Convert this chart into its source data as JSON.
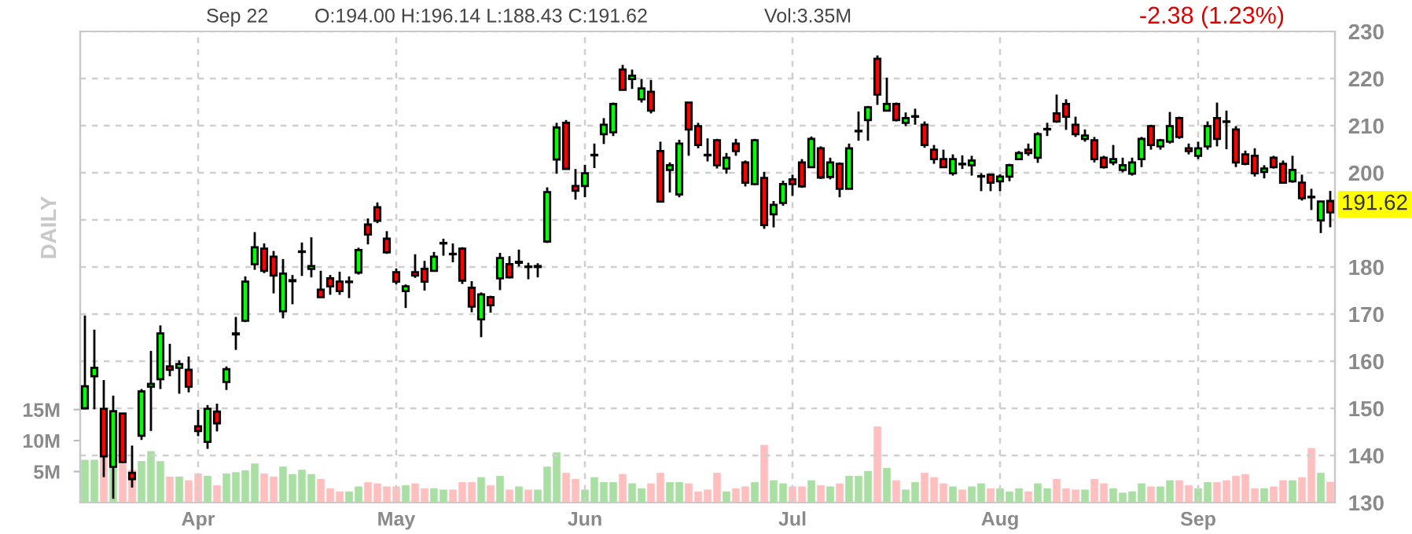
{
  "chart_data": {
    "type": "candlestick",
    "annotations": [
      "Sep 22",
      "O:194.00 H:196.14 L:188.43 C:191.62",
      "Vol:3.35M",
      "-2.38 (1.23%)",
      "DAILY",
      "191.62"
    ],
    "categories": [
      null,
      null,
      null,
      null,
      null,
      null,
      null,
      null,
      null,
      null,
      null,
      null,
      "Apr",
      null,
      null,
      null,
      null,
      null,
      null,
      null,
      null,
      null,
      null,
      null,
      null,
      null,
      null,
      null,
      null,
      null,
      null,
      null,
      null,
      "May",
      null,
      null,
      null,
      null,
      null,
      null,
      null,
      null,
      null,
      null,
      null,
      null,
      null,
      null,
      null,
      null,
      null,
      null,
      null,
      "Jun",
      null,
      null,
      null,
      null,
      null,
      null,
      null,
      null,
      null,
      null,
      null,
      null,
      null,
      null,
      null,
      null,
      null,
      null,
      null,
      null,
      null,
      "Jul",
      null,
      null,
      null,
      null,
      null,
      null,
      null,
      null,
      null,
      null,
      null,
      null,
      null,
      null,
      null,
      null,
      null,
      null,
      null,
      null,
      null,
      "Aug",
      null,
      null,
      null,
      null,
      null,
      null,
      null,
      null,
      null,
      null,
      null,
      null,
      null,
      null,
      null,
      null,
      null,
      null,
      null,
      null,
      "Sep",
      null,
      null,
      null,
      null,
      null,
      null,
      null,
      null,
      null,
      null,
      null,
      null,
      null,
      null
    ],
    "ohlc": [
      [
        150.0,
        169.7,
        149.8,
        154.7
      ],
      [
        156.8,
        166.7,
        149.8,
        158.6
      ],
      [
        149.9,
        156.0,
        135.4,
        139.8
      ],
      [
        137.6,
        152.7,
        130.8,
        149.4
      ],
      [
        148.9,
        149.0,
        138.4,
        138.6
      ],
      [
        136.3,
        142.1,
        133.2,
        135.0
      ],
      [
        144.2,
        154.1,
        143.3,
        153.6
      ],
      [
        154.6,
        162.2,
        145.2,
        155.2
      ],
      [
        156.2,
        167.6,
        154.1,
        165.9
      ],
      [
        158.9,
        163.7,
        156.8,
        158.2
      ],
      [
        158.6,
        160.2,
        153.1,
        159.4
      ],
      [
        158.2,
        161.0,
        153.4,
        154.6
      ],
      [
        146.2,
        149.7,
        144.1,
        145.2
      ],
      [
        142.9,
        150.7,
        141.4,
        149.9
      ],
      [
        149.3,
        151.0,
        145.1,
        146.8
      ],
      [
        155.6,
        158.9,
        153.9,
        158.3
      ],
      [
        165.7,
        169.4,
        162.4,
        165.9
      ],
      [
        168.6,
        178.0,
        168.3,
        176.9
      ],
      [
        180.6,
        187.4,
        179.4,
        184.2
      ],
      [
        183.9,
        185.0,
        178.7,
        179.2
      ],
      [
        182.2,
        183.4,
        174.4,
        178.2
      ],
      [
        170.6,
        181.7,
        169.1,
        178.6
      ],
      [
        177.0,
        178.3,
        172.1,
        177.2
      ],
      [
        183.2,
        185.2,
        178.1,
        183.3
      ],
      [
        179.6,
        186.3,
        177.8,
        180.2
      ],
      [
        175.2,
        179.2,
        173.6,
        173.6
      ],
      [
        177.6,
        178.3,
        174.1,
        175.9
      ],
      [
        176.9,
        179.0,
        174.1,
        174.9
      ],
      [
        176.8,
        178.0,
        173.4,
        176.9
      ],
      [
        178.8,
        184.1,
        178.4,
        183.6
      ],
      [
        189.0,
        190.3,
        184.8,
        186.9
      ],
      [
        192.7,
        193.7,
        189.3,
        189.8
      ],
      [
        186.0,
        187.6,
        182.8,
        183.1
      ],
      [
        178.9,
        179.7,
        176.3,
        176.9
      ],
      [
        174.9,
        176.3,
        171.3,
        175.9
      ],
      [
        178.9,
        182.7,
        177.7,
        178.2
      ],
      [
        179.6,
        181.3,
        175.0,
        176.9
      ],
      [
        179.2,
        183.2,
        179.2,
        182.2
      ],
      [
        185.0,
        186.0,
        182.4,
        185.1
      ],
      [
        182.8,
        185.0,
        181.0,
        182.7
      ],
      [
        183.9,
        184.2,
        176.4,
        177.1
      ],
      [
        175.6,
        177.0,
        170.4,
        171.6
      ],
      [
        168.9,
        174.6,
        165.1,
        174.2
      ],
      [
        173.6,
        173.9,
        170.3,
        171.9
      ],
      [
        177.6,
        183.0,
        175.1,
        181.9
      ],
      [
        180.6,
        182.3,
        177.6,
        177.8
      ],
      [
        180.9,
        183.7,
        180.1,
        181.1
      ],
      [
        180.1,
        180.9,
        177.4,
        180.0
      ],
      [
        180.0,
        180.8,
        177.8,
        180.2
      ],
      [
        185.4,
        196.9,
        185.1,
        195.9
      ],
      [
        202.8,
        210.6,
        199.8,
        209.6
      ],
      [
        210.6,
        211.2,
        200.8,
        200.8
      ],
      [
        197.2,
        200.8,
        194.3,
        196.2
      ],
      [
        197.2,
        201.7,
        194.8,
        199.9
      ],
      [
        203.7,
        206.2,
        201.0,
        203.8
      ],
      [
        208.2,
        211.6,
        206.1,
        210.2
      ],
      [
        208.6,
        214.9,
        207.8,
        214.6
      ],
      [
        221.9,
        222.9,
        217.6,
        217.6
      ],
      [
        219.9,
        221.9,
        217.8,
        220.6
      ],
      [
        215.6,
        219.9,
        214.9,
        217.9
      ],
      [
        217.2,
        219.7,
        212.6,
        213.2
      ],
      [
        204.6,
        206.6,
        193.9,
        193.9
      ],
      [
        200.6,
        202.2,
        195.8,
        201.6
      ],
      [
        195.4,
        207.0,
        194.8,
        206.2
      ],
      [
        214.9,
        214.9,
        203.6,
        209.2
      ],
      [
        209.9,
        210.6,
        205.2,
        205.9
      ],
      [
        203.8,
        207.3,
        202.4,
        203.7
      ],
      [
        206.9,
        207.2,
        200.9,
        201.6
      ],
      [
        200.9,
        204.2,
        199.8,
        203.2
      ],
      [
        206.2,
        207.2,
        203.6,
        204.6
      ],
      [
        202.2,
        202.6,
        197.1,
        197.9
      ],
      [
        197.6,
        207.2,
        197.4,
        206.9
      ],
      [
        198.9,
        200.2,
        188.1,
        188.9
      ],
      [
        191.2,
        194.0,
        188.4,
        193.2
      ],
      [
        193.6,
        198.3,
        193.0,
        197.6
      ],
      [
        198.6,
        199.6,
        195.1,
        197.6
      ],
      [
        202.2,
        202.9,
        196.8,
        197.1
      ],
      [
        201.2,
        207.7,
        201.1,
        207.2
      ],
      [
        205.2,
        205.6,
        198.7,
        199.0
      ],
      [
        199.1,
        203.2,
        198.6,
        202.2
      ],
      [
        201.9,
        202.2,
        194.8,
        196.6
      ],
      [
        196.6,
        206.2,
        196.6,
        205.2
      ],
      [
        208.8,
        213.0,
        206.8,
        208.9
      ],
      [
        211.2,
        214.2,
        206.8,
        213.9
      ],
      [
        224.2,
        224.9,
        214.4,
        216.6
      ],
      [
        213.2,
        220.2,
        213.2,
        214.6
      ],
      [
        214.6,
        214.9,
        210.9,
        211.2
      ],
      [
        210.6,
        212.8,
        209.9,
        211.6
      ],
      [
        211.9,
        213.6,
        210.2,
        212.0
      ],
      [
        210.2,
        210.9,
        205.3,
        205.9
      ],
      [
        204.9,
        205.9,
        201.9,
        202.9
      ],
      [
        202.9,
        204.9,
        201.2,
        201.2
      ],
      [
        199.9,
        203.9,
        199.4,
        202.9
      ],
      [
        201.9,
        203.7,
        200.8,
        201.8
      ],
      [
        201.6,
        203.6,
        199.4,
        202.6
      ],
      [
        199.2,
        199.9,
        196.1,
        199.3
      ],
      [
        199.6,
        199.6,
        196.1,
        197.9
      ],
      [
        198.2,
        199.7,
        196.1,
        199.2
      ],
      [
        199.2,
        201.9,
        198.2,
        201.6
      ],
      [
        202.9,
        204.6,
        202.7,
        204.2
      ],
      [
        204.9,
        206.2,
        203.6,
        204.2
      ],
      [
        203.2,
        208.6,
        202.1,
        208.2
      ],
      [
        209.2,
        210.6,
        207.8,
        209.3
      ],
      [
        212.6,
        216.6,
        210.6,
        210.9
      ],
      [
        214.6,
        215.6,
        209.1,
        211.9
      ],
      [
        210.2,
        211.9,
        207.6,
        208.2
      ],
      [
        207.2,
        209.2,
        206.6,
        207.9
      ],
      [
        206.9,
        207.6,
        202.2,
        202.9
      ],
      [
        203.2,
        203.6,
        200.9,
        201.2
      ],
      [
        202.2,
        205.9,
        201.6,
        202.9
      ],
      [
        200.6,
        203.2,
        200.1,
        201.6
      ],
      [
        199.8,
        203.2,
        199.4,
        202.2
      ],
      [
        202.9,
        207.6,
        201.2,
        207.2
      ],
      [
        209.9,
        210.2,
        204.9,
        205.9
      ],
      [
        205.6,
        207.2,
        204.9,
        206.9
      ],
      [
        206.6,
        212.9,
        206.2,
        209.9
      ],
      [
        211.6,
        211.9,
        207.2,
        207.6
      ],
      [
        205.2,
        206.2,
        203.9,
        204.6
      ],
      [
        203.6,
        206.6,
        202.9,
        205.2
      ],
      [
        205.6,
        210.9,
        204.9,
        209.9
      ],
      [
        211.6,
        214.9,
        205.6,
        207.2
      ],
      [
        210.9,
        213.2,
        205.0,
        210.8
      ],
      [
        209.2,
        209.9,
        201.2,
        202.2
      ],
      [
        203.9,
        204.7,
        201.6,
        201.9
      ],
      [
        203.6,
        205.2,
        199.2,
        199.9
      ],
      [
        200.2,
        201.6,
        198.8,
        200.9
      ],
      [
        203.2,
        203.6,
        200.9,
        201.2
      ],
      [
        201.9,
        202.6,
        197.9,
        197.9
      ],
      [
        198.2,
        203.6,
        197.9,
        200.6
      ],
      [
        197.9,
        199.6,
        194.1,
        194.6
      ],
      [
        194.9,
        196.6,
        192.1,
        194.8
      ],
      [
        189.9,
        193.9,
        187.2,
        193.9
      ],
      [
        194.0,
        196.14,
        188.43,
        191.62
      ]
    ],
    "colors": [
      "#00ff00",
      "#00ff00",
      "#ff0000",
      "#00ff00",
      "#ff0000",
      "#ff0000",
      "#00ff00",
      "#00ff00",
      "#00ff00",
      "#ff0000",
      "#00ff00",
      "#ff0000",
      "#ff0000",
      "#00ff00",
      "#ff0000",
      "#00ff00",
      "#00ff00",
      "#00ff00",
      "#00ff00",
      "#ff0000",
      "#ff0000",
      "#00ff00",
      "#00ff00",
      "#00ff00",
      "#00ff00",
      "#ff0000",
      "#ff0000",
      "#ff0000",
      "#00ff00",
      "#00ff00",
      "#ff0000",
      "#ff0000",
      "#ff0000",
      "#ff0000",
      "#00ff00",
      "#ff0000",
      "#ff0000",
      "#00ff00",
      "#00ff00",
      "#ff0000",
      "#ff0000",
      "#ff0000",
      "#00ff00",
      "#ff0000",
      "#00ff00",
      "#ff0000",
      "#00ff00",
      "#ff0000",
      "#00ff00",
      "#00ff00",
      "#00ff00",
      "#ff0000",
      "#ff0000",
      "#00ff00",
      "#00ff00",
      "#00ff00",
      "#00ff00",
      "#ff0000",
      "#00ff00",
      "#00ff00",
      "#ff0000",
      "#ff0000",
      "#00ff00",
      "#00ff00",
      "#ff0000",
      "#ff0000",
      "#ff0000",
      "#ff0000",
      "#00ff00",
      "#ff0000",
      "#ff0000",
      "#00ff00",
      "#ff0000",
      "#00ff00",
      "#00ff00",
      "#ff0000",
      "#ff0000",
      "#00ff00",
      "#ff0000",
      "#00ff00",
      "#ff0000",
      "#00ff00",
      "#00ff00",
      "#00ff00",
      "#ff0000",
      "#00ff00",
      "#ff0000",
      "#00ff00",
      "#00ff00",
      "#ff0000",
      "#ff0000",
      "#ff0000",
      "#00ff00",
      "#ff0000",
      "#00ff00",
      "#00ff00",
      "#ff0000",
      "#00ff00",
      "#00ff00",
      "#00ff00",
      "#ff0000",
      "#00ff00",
      "#00ff00",
      "#ff0000",
      "#ff0000",
      "#ff0000",
      "#00ff00",
      "#ff0000",
      "#ff0000",
      "#00ff00",
      "#00ff00",
      "#00ff00",
      "#00ff00",
      "#ff0000",
      "#00ff00",
      "#00ff00",
      "#ff0000",
      "#ff0000",
      "#00ff00",
      "#00ff00",
      "#ff0000",
      "#ff0000",
      "#ff0000",
      "#ff0000",
      "#ff0000",
      "#00ff00",
      "#ff0000",
      "#ff0000",
      "#00ff00",
      "#ff0000",
      "#ff0000",
      "#00ff00",
      "#ff0000"
    ],
    "series": [
      {
        "type": "bar",
        "axis": "y2",
        "values": [
          6.9,
          6.9,
          7.5,
          6.3,
          6.3,
          5.3,
          6.7,
          8.3,
          6.7,
          4.2,
          4.2,
          3.6,
          4.7,
          4.3,
          2.8,
          4.7,
          4.9,
          5.2,
          6.3,
          4.7,
          4.2,
          5.8,
          4.6,
          5.3,
          4.6,
          3.8,
          2.3,
          1.8,
          1.8,
          2.6,
          3.3,
          3.1,
          2.6,
          2.6,
          2.8,
          3.1,
          2.3,
          2.3,
          2.1,
          2.1,
          3.3,
          3.3,
          4.1,
          2.8,
          4.3,
          2.1,
          2.6,
          2.1,
          2.1,
          5.8,
          8.1,
          4.8,
          3.8,
          2.1,
          4.1,
          3.3,
          3.3,
          4.6,
          3.1,
          2.3,
          3.1,
          4.8,
          3.3,
          3.3,
          3.1,
          1.8,
          2.1,
          4.8,
          1.8,
          2.3,
          2.6,
          3.3,
          9.3,
          3.6,
          3.1,
          2.6,
          2.6,
          3.6,
          2.8,
          2.6,
          3.1,
          4.3,
          4.3,
          5.1,
          12.3,
          5.6,
          3.6,
          2.1,
          3.3,
          4.8,
          4.1,
          3.1,
          2.6,
          2.1,
          2.6,
          3.1,
          2.3,
          2.3,
          1.8,
          2.3,
          1.8,
          3.1,
          2.3,
          3.8,
          2.3,
          2.1,
          2.1,
          3.8,
          3.1,
          2.3,
          1.6,
          1.8,
          3.1,
          2.6,
          2.6,
          3.6,
          3.6,
          2.8,
          2.3,
          3.3,
          3.3,
          3.6,
          4.3,
          4.6,
          2.3,
          2.3,
          2.6,
          3.6,
          3.6,
          4.1,
          8.8,
          4.8,
          3.35
        ],
        "colors": [
          "#aadfa3",
          "#aadfa3",
          "#ffbfbf",
          "#aadfa3",
          "#ffbfbf",
          "#ffbfbf",
          "#aadfa3",
          "#aadfa3",
          "#aadfa3",
          "#ffbfbf",
          "#aadfa3",
          "#ffbfbf",
          "#ffbfbf",
          "#aadfa3",
          "#ffbfbf",
          "#aadfa3",
          "#aadfa3",
          "#aadfa3",
          "#aadfa3",
          "#ffbfbf",
          "#ffbfbf",
          "#aadfa3",
          "#aadfa3",
          "#aadfa3",
          "#aadfa3",
          "#ffbfbf",
          "#ffbfbf",
          "#ffbfbf",
          "#aadfa3",
          "#aadfa3",
          "#ffbfbf",
          "#ffbfbf",
          "#ffbfbf",
          "#ffbfbf",
          "#aadfa3",
          "#ffbfbf",
          "#ffbfbf",
          "#aadfa3",
          "#aadfa3",
          "#ffbfbf",
          "#ffbfbf",
          "#ffbfbf",
          "#aadfa3",
          "#ffbfbf",
          "#aadfa3",
          "#ffbfbf",
          "#aadfa3",
          "#ffbfbf",
          "#aadfa3",
          "#aadfa3",
          "#aadfa3",
          "#ffbfbf",
          "#ffbfbf",
          "#aadfa3",
          "#aadfa3",
          "#aadfa3",
          "#aadfa3",
          "#ffbfbf",
          "#aadfa3",
          "#aadfa3",
          "#ffbfbf",
          "#ffbfbf",
          "#aadfa3",
          "#aadfa3",
          "#ffbfbf",
          "#ffbfbf",
          "#ffbfbf",
          "#ffbfbf",
          "#aadfa3",
          "#ffbfbf",
          "#ffbfbf",
          "#aadfa3",
          "#ffbfbf",
          "#aadfa3",
          "#aadfa3",
          "#ffbfbf",
          "#ffbfbf",
          "#aadfa3",
          "#ffbfbf",
          "#aadfa3",
          "#ffbfbf",
          "#aadfa3",
          "#aadfa3",
          "#aadfa3",
          "#ffbfbf",
          "#aadfa3",
          "#ffbfbf",
          "#aadfa3",
          "#aadfa3",
          "#ffbfbf",
          "#ffbfbf",
          "#ffbfbf",
          "#aadfa3",
          "#ffbfbf",
          "#aadfa3",
          "#aadfa3",
          "#ffbfbf",
          "#aadfa3",
          "#aadfa3",
          "#aadfa3",
          "#ffbfbf",
          "#aadfa3",
          "#aadfa3",
          "#ffbfbf",
          "#ffbfbf",
          "#ffbfbf",
          "#aadfa3",
          "#ffbfbf",
          "#ffbfbf",
          "#aadfa3",
          "#aadfa3",
          "#aadfa3",
          "#aadfa3",
          "#ffbfbf",
          "#aadfa3",
          "#aadfa3",
          "#ffbfbf",
          "#ffbfbf",
          "#aadfa3",
          "#aadfa3",
          "#ffbfbf",
          "#ffbfbf",
          "#ffbfbf",
          "#ffbfbf",
          "#ffbfbf",
          "#aadfa3",
          "#ffbfbf",
          "#ffbfbf",
          "#aadfa3",
          "#ffbfbf",
          "#ffbfbf",
          "#aadfa3",
          "#ffbfbf"
        ]
      }
    ],
    "ylim": [
      130,
      230
    ],
    "yticks": [
      130,
      140,
      150,
      160,
      170,
      180,
      {
        "value": 190,
        "label": null
      },
      200,
      210,
      220,
      230
    ],
    "y2lim": [
      0,
      76
    ],
    "y2ticks": [
      {
        "value": 5,
        "label": "5M"
      },
      {
        "value": 10,
        "label": "10M"
      },
      {
        "value": 15,
        "label": "15M"
      }
    ],
    "grid": true
  }
}
